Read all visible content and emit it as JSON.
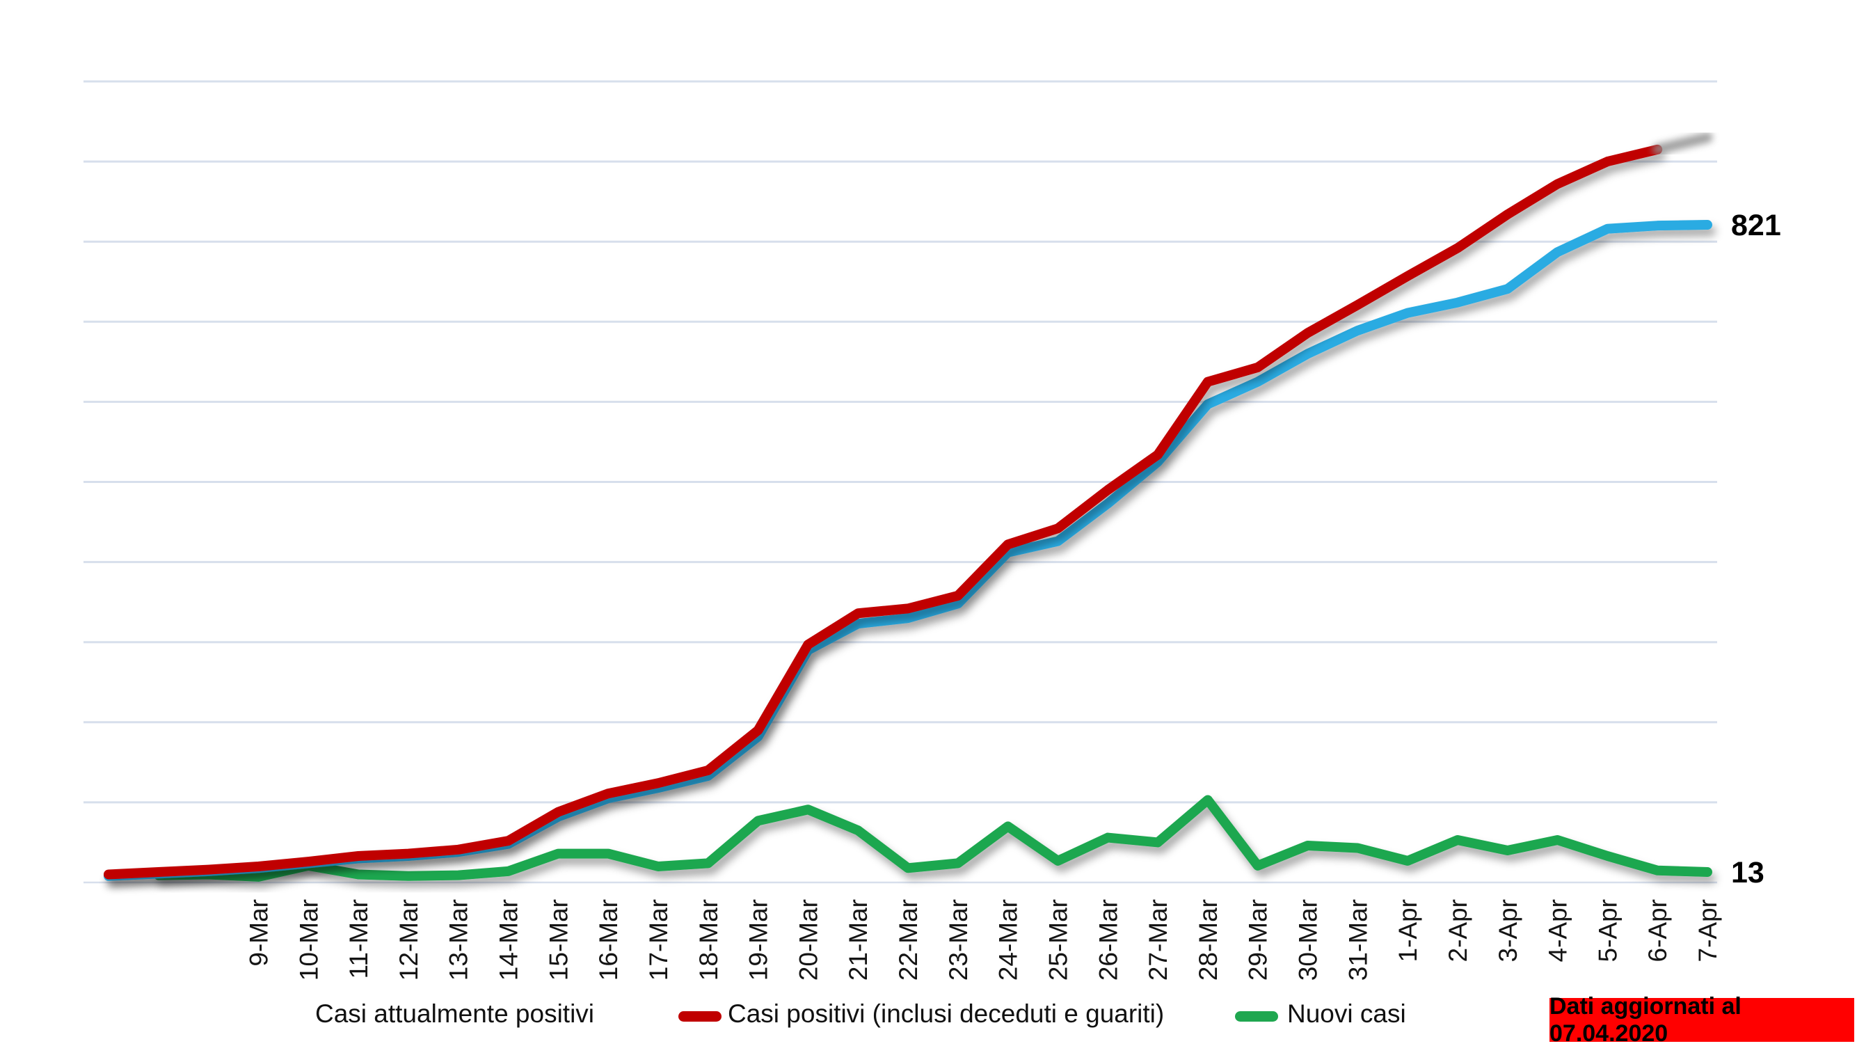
{
  "chart_data": {
    "type": "line",
    "title": "",
    "xlabel": "",
    "ylabel": "",
    "ylim": [
      0,
      1000
    ],
    "gridline_step": 100,
    "grid": "horizontal",
    "y_axis_labels_visible": false,
    "x_count": 33,
    "first_label_index": 3,
    "x_tick_labels": [
      "9-Mar",
      "10-Mar",
      "11-Mar",
      "12-Mar",
      "13-Mar",
      "14-Mar",
      "15-Mar",
      "16-Mar",
      "17-Mar",
      "18-Mar",
      "19-Mar",
      "20-Mar",
      "21-Mar",
      "22-Mar",
      "23-Mar",
      "24-Mar",
      "25-Mar",
      "26-Mar",
      "27-Mar",
      "28-Mar",
      "29-Mar",
      "30-Mar",
      "31-Mar",
      "1-Apr",
      "2-Apr",
      "3-Apr",
      "4-Apr",
      "5-Apr",
      "6-Apr",
      "7-Apr"
    ],
    "series": [
      {
        "name": "Nuovi casi",
        "color": "#1FA750",
        "values": [
          null,
          9,
          10,
          7,
          21,
          10,
          8,
          9,
          14,
          36,
          36,
          20,
          24,
          77,
          91,
          65,
          18,
          24,
          70,
          27,
          56,
          50,
          103,
          21,
          46,
          43,
          27,
          53,
          40,
          53,
          33,
          15,
          13
        ]
      },
      {
        "name": "Casi attualmente positivi",
        "color": "#29ABE2",
        "values": [
          8,
          11,
          14,
          18,
          24,
          30,
          33,
          38,
          48,
          82,
          105,
          118,
          133,
          182,
          290,
          323,
          330,
          348,
          412,
          426,
          473,
          525,
          597,
          625,
          660,
          689,
          711,
          724,
          741,
          787,
          816,
          820,
          821
        ]
      },
      {
        "name": "Casi positivi (inclusi deceduti e guariti)",
        "color": "#C00000",
        "values": [
          10,
          13,
          16,
          20,
          26,
          33,
          36,
          41,
          52,
          88,
          111,
          124,
          140,
          190,
          297,
          336,
          342,
          358,
          422,
          442,
          490,
          534,
          625,
          643,
          686,
          721,
          757,
          792,
          834,
          872,
          900,
          915,
          930
        ]
      }
    ],
    "forecast_tail": {
      "series_index": 2,
      "from_index": 31,
      "to_index": 32,
      "color": "#8f8f8f"
    },
    "end_labels": [
      {
        "text": "821",
        "series_index": 1
      },
      {
        "text": "13",
        "series_index": 0
      }
    ],
    "gridline_color": "#D7DFEC"
  },
  "legend": {
    "items": [
      {
        "label": "Casi attualmente positivi",
        "swatch_series": null
      },
      {
        "label": "Casi positivi (inclusi deceduti e guariti)",
        "swatch_series": 2
      },
      {
        "label": "Nuovi casi",
        "swatch_series": 0
      }
    ]
  },
  "badge": {
    "text": "Dati aggiornati al 07.04.2020",
    "bg": "#FF0000",
    "fg": "#000000"
  }
}
